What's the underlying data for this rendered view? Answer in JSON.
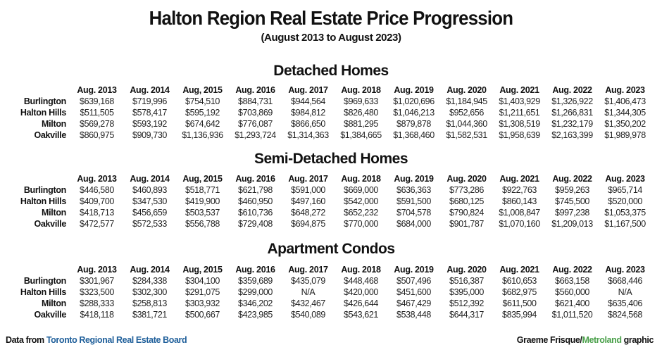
{
  "header": {
    "title": "Halton Region Real Estate Price Progression",
    "subtitle": "(August 2013 to August 2023)"
  },
  "sections": [
    {
      "title": "Detached Homes",
      "columns": [
        "Aug. 2013",
        "Aug. 2014",
        "Aug, 2015",
        "Aug. 2016",
        "Aug. 2017",
        "Aug. 2018",
        "Aug. 2019",
        "Aug. 2020",
        "Aug. 2021",
        "Aug. 2022",
        "Aug. 2023"
      ],
      "rows": [
        {
          "label": "Burlington",
          "values": [
            "$639,168",
            "$719,996",
            "$754,510",
            "$884,731",
            "$944,564",
            "$969,633",
            "$1,020,696",
            "$1,184,945",
            "$1,403,929",
            "$1,326,922",
            "$1,406,473"
          ]
        },
        {
          "label": "Halton Hills",
          "values": [
            "$511,505",
            "$578,417",
            "$595,192",
            "$703,869",
            "$984,812",
            "$826,480",
            "$1,046,213",
            "$952,656",
            "$1,211,651",
            "$1,266,831",
            "$1,344,305"
          ]
        },
        {
          "label": "Milton",
          "values": [
            "$569,278",
            "$593,192",
            "$674,642",
            "$776,087",
            "$866,650",
            "$881,295",
            "$879,878",
            "$1,044,360",
            "$1,308,519",
            "$1,232,179",
            "$1,350,202"
          ]
        },
        {
          "label": "Oakville",
          "values": [
            "$860,975",
            "$909,730",
            "$1,136,936",
            "$1,293,724",
            "$1,314,363",
            "$1,384,665",
            "$1,368,460",
            "$1,582,531",
            "$1,958,639",
            "$2,163,399",
            "$1,989,978"
          ]
        }
      ]
    },
    {
      "title": "Semi-Detached Homes",
      "columns": [
        "Aug. 2013",
        "Aug. 2014",
        "Aug, 2015",
        "Aug. 2016",
        "Aug. 2017",
        "Aug. 2018",
        "Aug. 2019",
        "Aug. 2020",
        "Aug. 2021",
        "Aug. 2022",
        "Aug. 2023"
      ],
      "rows": [
        {
          "label": "Burlington",
          "values": [
            "$446,580",
            "$460,893",
            "$518,771",
            "$621,798",
            "$591,000",
            "$669,000",
            "$636,363",
            "$773,286",
            "$922,763",
            "$959,263",
            "$965,714"
          ]
        },
        {
          "label": "Halton Hills",
          "values": [
            "$409,700",
            "$347,530",
            "$419,900",
            "$460,950",
            "$497,160",
            "$542,000",
            "$591,500",
            "$680,125",
            "$860,143",
            "$745,500",
            "$520,000"
          ]
        },
        {
          "label": "Milton",
          "values": [
            "$418,713",
            "$456,659",
            "$503,537",
            "$610,736",
            "$648,272",
            "$652,232",
            "$704,578",
            "$790,824",
            "$1,008,847",
            "$997,238",
            "$1,053,375"
          ]
        },
        {
          "label": "Oakville",
          "values": [
            "$472,577",
            "$572,533",
            "$556,788",
            "$729,408",
            "$694,875",
            "$770,000",
            "$684,000",
            "$901,787",
            "$1,070,160",
            "$1,209,013",
            "$1,167,500"
          ]
        }
      ]
    },
    {
      "title": "Apartment Condos",
      "columns": [
        "Aug. 2013",
        "Aug. 2014",
        "Aug, 2015",
        "Aug. 2016",
        "Aug. 2017",
        "Aug. 2018",
        "Aug. 2019",
        "Aug. 2020",
        "Aug. 2021",
        "Aug. 2022",
        "Aug. 2023"
      ],
      "rows": [
        {
          "label": "Burlington",
          "values": [
            "$301,967",
            "$284,338",
            "$304,100",
            "$359,689",
            "$435,079",
            "$448,468",
            "$507,496",
            "$516,387",
            "$610,653",
            "$663,158",
            "$668,446"
          ]
        },
        {
          "label": "Halton Hills",
          "values": [
            "$323,500",
            "$302,300",
            "$291,075",
            "$299,000",
            "N/A",
            "$420,000",
            "$451,600",
            "$395,000",
            "$682,975",
            "$560,000",
            "N/A"
          ]
        },
        {
          "label": "Milton",
          "values": [
            "$288,333",
            "$258,813",
            "$303,932",
            "$346,202",
            "$432,467",
            "$426,644",
            "$467,429",
            "$512,392",
            "$611,500",
            "$621,400",
            "$635,406"
          ]
        },
        {
          "label": "Oakville",
          "values": [
            "$418,118",
            "$381,721",
            "$500,667",
            "$423,985",
            "$540,089",
            "$543,621",
            "$538,448",
            "$644,317",
            "$835,994",
            "$1,011,520",
            "$824,568"
          ]
        }
      ]
    }
  ],
  "footer": {
    "source_prefix": "Data from ",
    "source_name": "Toronto Regional Real Estate Board",
    "credit_author": "Graeme Frisque/",
    "credit_brand": "Metroland",
    "credit_suffix": " graphic"
  },
  "colors": {
    "source_link": "#1f5f9a",
    "brand": "#4aa04a",
    "text": "#111111"
  }
}
